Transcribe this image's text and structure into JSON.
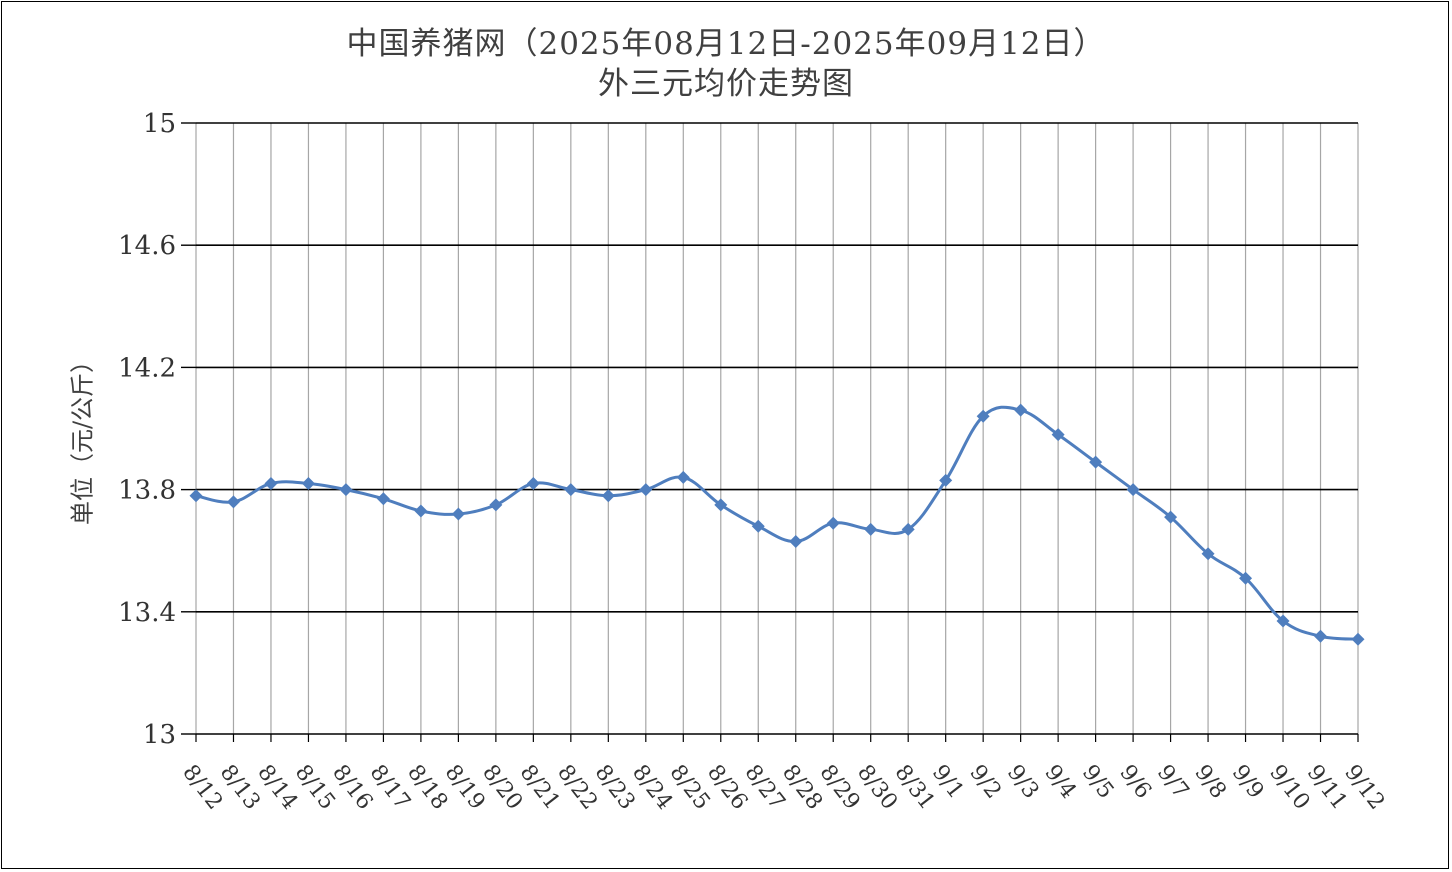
{
  "chart_data": {
    "type": "line",
    "title": "中国养猪网（2025年08月12日-2025年09月12日）",
    "subtitle": "外三元均价走势图",
    "xlabel": "",
    "ylabel": "单位（元/公斤）",
    "ylim": [
      13,
      15
    ],
    "yticks": [
      "13",
      "13.4",
      "13.8",
      "14.2",
      "14.6",
      "15"
    ],
    "grid": true,
    "legend": "none",
    "colors": {
      "line": "#4F7EBE",
      "grid_major": "#000000",
      "grid_minor": "#A6A6A6"
    },
    "categories": [
      "8/12",
      "8/13",
      "8/14",
      "8/15",
      "8/16",
      "8/17",
      "8/18",
      "8/19",
      "8/20",
      "8/21",
      "8/22",
      "8/23",
      "8/24",
      "8/25",
      "8/26",
      "8/27",
      "8/28",
      "8/29",
      "8/30",
      "8/31",
      "9/1",
      "9/2",
      "9/3",
      "9/4",
      "9/5",
      "9/6",
      "9/7",
      "9/8",
      "9/9",
      "9/10",
      "9/11",
      "9/12"
    ],
    "series": [
      {
        "values": [
          13.78,
          13.76,
          13.82,
          13.82,
          13.8,
          13.77,
          13.73,
          13.72,
          13.75,
          13.82,
          13.8,
          13.78,
          13.8,
          13.84,
          13.75,
          13.68,
          13.63,
          13.69,
          13.67,
          13.67,
          13.83,
          14.04,
          14.06,
          13.98,
          13.89,
          13.8,
          13.71,
          13.59,
          13.51,
          13.37,
          13.32,
          13.31
        ]
      }
    ]
  }
}
